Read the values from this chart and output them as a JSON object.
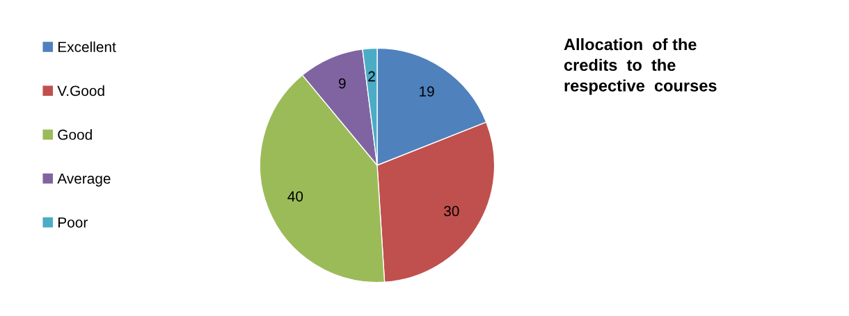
{
  "chart_data": {
    "type": "pie",
    "title": "Allocation  of the\ncredits  to  the\nrespective  courses",
    "categories": [
      "Excellent",
      "V.Good",
      "Good",
      "Average",
      "Poor"
    ],
    "values": [
      19,
      30,
      40,
      9,
      2
    ],
    "colors": [
      "#4f81bd",
      "#c0504d",
      "#9bbb59",
      "#8064a2",
      "#4bacc6"
    ],
    "data_labels": true,
    "legend": "left"
  }
}
